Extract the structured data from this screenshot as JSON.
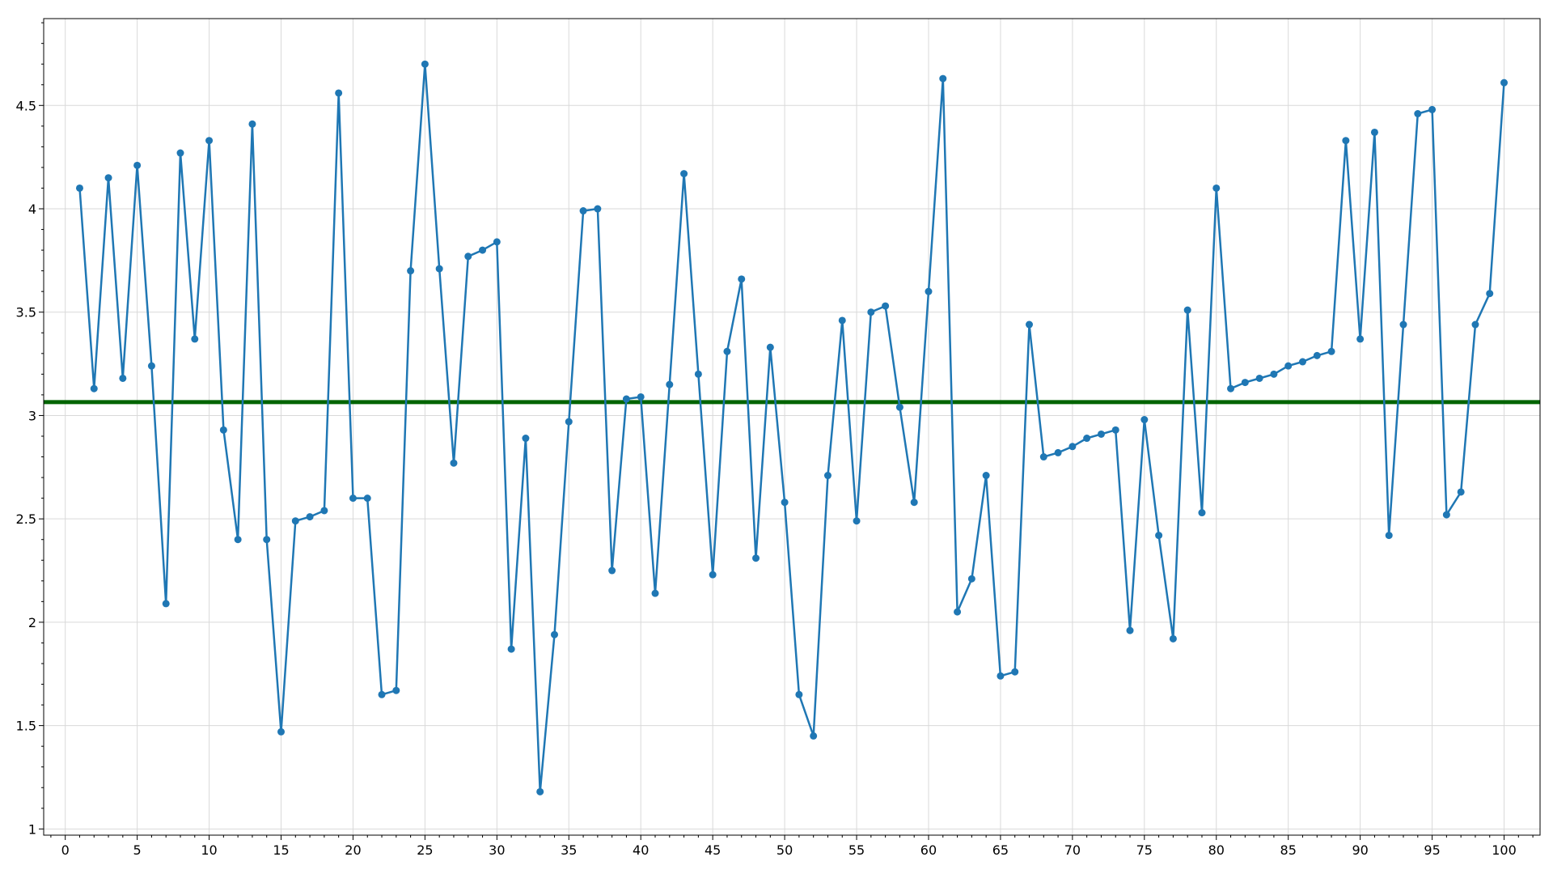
{
  "chart_data": {
    "type": "line",
    "title": "",
    "xlabel": "",
    "ylabel": "",
    "xlim": [
      -1.5,
      102.5
    ],
    "ylim": [
      0.97,
      4.92
    ],
    "grid": true,
    "x_ticks": [
      0,
      5,
      10,
      15,
      20,
      25,
      30,
      35,
      40,
      45,
      50,
      55,
      60,
      65,
      70,
      75,
      80,
      85,
      90,
      95,
      100
    ],
    "x_tick_labels": [
      "0",
      "5",
      "10",
      "15",
      "20",
      "25",
      "30",
      "35",
      "40",
      "45",
      "50",
      "55",
      "60",
      "65",
      "70",
      "75",
      "80",
      "85",
      "90",
      "95",
      "100"
    ],
    "y_ticks": [
      1,
      1.5,
      2,
      2.5,
      3,
      3.5,
      4,
      4.5
    ],
    "y_tick_labels": [
      "1",
      "1.5",
      "2",
      "2.5",
      "3",
      "3.5",
      "4",
      "4.5"
    ],
    "series": [
      {
        "color": "#1f77b4",
        "marker": "circle",
        "x": [
          1,
          2,
          3,
          4,
          5,
          6,
          7,
          8,
          9,
          10,
          11,
          12,
          13,
          14,
          15,
          16,
          17,
          18,
          19,
          20,
          21,
          22,
          23,
          24,
          25,
          26,
          27,
          28,
          29,
          30,
          31,
          32,
          33,
          34,
          35,
          36,
          37,
          38,
          39,
          40,
          41,
          42,
          43,
          44,
          45,
          46,
          47,
          48,
          49,
          50,
          51,
          52,
          53,
          54,
          55,
          56,
          57,
          58,
          59,
          60,
          61,
          62,
          63,
          64,
          65,
          66,
          67,
          68,
          69,
          70,
          71,
          72,
          73,
          74,
          75,
          76,
          77,
          78,
          79,
          80,
          81,
          82,
          83,
          84,
          85,
          86,
          87,
          88,
          89,
          90,
          91,
          92,
          93,
          94,
          95,
          96,
          97,
          98,
          99,
          100
        ],
        "values": [
          4.1,
          3.13,
          4.15,
          3.18,
          4.21,
          3.24,
          2.09,
          4.27,
          3.37,
          4.33,
          2.93,
          2.4,
          4.41,
          2.4,
          1.47,
          2.49,
          2.51,
          2.54,
          4.56,
          2.6,
          2.6,
          1.65,
          1.67,
          3.7,
          4.7,
          3.71,
          2.77,
          3.77,
          3.8,
          3.84,
          1.87,
          2.89,
          1.18,
          1.94,
          2.97,
          3.99,
          4.0,
          2.25,
          3.08,
          3.09,
          2.14,
          3.15,
          4.17,
          3.2,
          2.23,
          3.31,
          3.66,
          2.31,
          3.33,
          2.58,
          1.65,
          1.45,
          2.71,
          3.46,
          2.49,
          3.5,
          3.53,
          3.04,
          2.58,
          3.6,
          4.63,
          2.05,
          2.21,
          2.71,
          1.74,
          1.76,
          3.44,
          2.8,
          2.82,
          2.85,
          2.89,
          2.91,
          2.93,
          1.96,
          2.98,
          2.42,
          1.92,
          3.51,
          2.53,
          4.1,
          3.13,
          3.16,
          3.18,
          3.2,
          3.24,
          3.26,
          3.29,
          3.31,
          4.33,
          3.37,
          4.37,
          2.42,
          3.44,
          4.46,
          4.48,
          2.52,
          2.63,
          3.44,
          3.59,
          4.61
        ]
      }
    ],
    "hlines": [
      {
        "y": 3.065,
        "color": "#006400"
      }
    ]
  }
}
